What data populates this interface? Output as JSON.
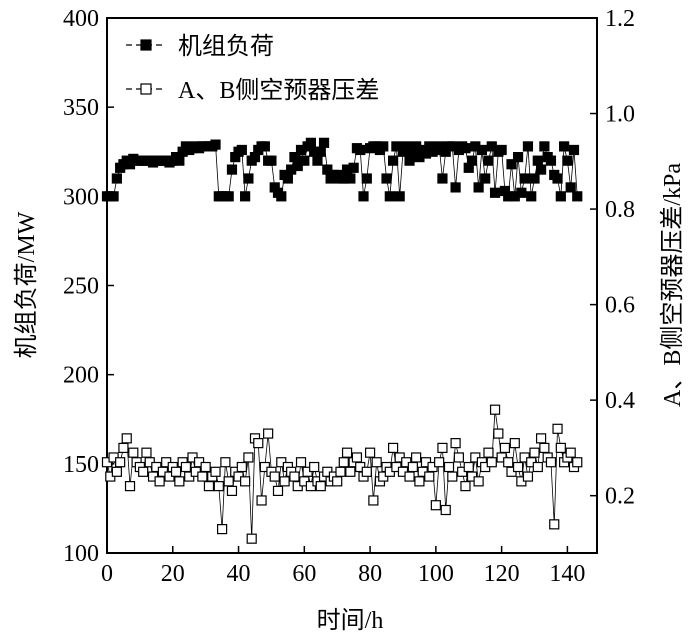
{
  "chart_data": {
    "type": "line",
    "x_label": "时间/h",
    "y_label": "机组负荷/MW",
    "y2_label": "A、B侧空预器压差/kPa",
    "x": [
      0,
      1,
      2,
      3,
      4,
      5,
      6,
      7,
      8,
      9,
      10,
      11,
      12,
      13,
      14,
      15,
      16,
      17,
      18,
      19,
      20,
      21,
      22,
      23,
      24,
      25,
      26,
      27,
      28,
      29,
      30,
      31,
      32,
      33,
      34,
      35,
      36,
      37,
      38,
      39,
      40,
      41,
      42,
      43,
      44,
      45,
      46,
      47,
      48,
      49,
      50,
      51,
      52,
      53,
      54,
      55,
      56,
      57,
      58,
      59,
      60,
      61,
      62,
      63,
      64,
      65,
      66,
      67,
      68,
      69,
      70,
      71,
      72,
      73,
      74,
      75,
      76,
      77,
      78,
      79,
      80,
      81,
      82,
      83,
      84,
      85,
      86,
      87,
      88,
      89,
      90,
      91,
      92,
      93,
      94,
      95,
      96,
      97,
      98,
      99,
      100,
      101,
      102,
      103,
      104,
      105,
      106,
      107,
      108,
      109,
      110,
      111,
      112,
      113,
      114,
      115,
      116,
      117,
      118,
      119,
      120,
      121,
      122,
      123,
      124,
      125,
      126,
      127,
      128,
      129,
      130,
      131,
      132,
      133,
      134,
      135,
      136,
      137,
      138,
      139,
      140,
      141,
      142,
      143
    ],
    "series": [
      {
        "name": "机组负荷",
        "color": "#000000",
        "marker": "filled",
        "axis": "y",
        "values": [
          300,
          300,
          300,
          310,
          316,
          318,
          320,
          318,
          321,
          320,
          320,
          320,
          320,
          320,
          319,
          320,
          320,
          320,
          320,
          319,
          320,
          322,
          320,
          325,
          328,
          326,
          327,
          328,
          327,
          328,
          328,
          328,
          328,
          329,
          300,
          300,
          300,
          300,
          315,
          322,
          325,
          326,
          300,
          310,
          320,
          322,
          326,
          328,
          328,
          320,
          320,
          305,
          302,
          300,
          312,
          310,
          315,
          322,
          317,
          326,
          320,
          328,
          330,
          325,
          320,
          325,
          330,
          315,
          310,
          312,
          312,
          310,
          310,
          315,
          310,
          316,
          327,
          326,
          300,
          310,
          327,
          328,
          328,
          326,
          328,
          310,
          300,
          320,
          328,
          300,
          325,
          328,
          320,
          325,
          328,
          322,
          326,
          324,
          328,
          325,
          326,
          328,
          310,
          325,
          328,
          328,
          305,
          326,
          328,
          327,
          316,
          320,
          328,
          305,
          326,
          310,
          320,
          328,
          302,
          325,
          326,
          303,
          300,
          318,
          300,
          322,
          302,
          310,
          328,
          300,
          310,
          320,
          315,
          328,
          322,
          320,
          312,
          310,
          300,
          328,
          320,
          305,
          326,
          300
        ]
      },
      {
        "name": "A、B侧空预器压差",
        "color": "#000000",
        "marker": "open",
        "axis": "y2",
        "values": [
          0.27,
          0.24,
          0.28,
          0.25,
          0.27,
          0.3,
          0.32,
          0.22,
          0.29,
          0.27,
          0.26,
          0.25,
          0.29,
          0.27,
          0.24,
          0.26,
          0.23,
          0.25,
          0.27,
          0.24,
          0.26,
          0.25,
          0.23,
          0.27,
          0.26,
          0.24,
          0.28,
          0.25,
          0.27,
          0.24,
          0.26,
          0.22,
          0.24,
          0.25,
          0.22,
          0.13,
          0.27,
          0.23,
          0.21,
          0.25,
          0.24,
          0.26,
          0.23,
          0.28,
          0.11,
          0.32,
          0.31,
          0.19,
          0.26,
          0.33,
          0.25,
          0.24,
          0.21,
          0.27,
          0.23,
          0.26,
          0.25,
          0.24,
          0.22,
          0.27,
          0.23,
          0.25,
          0.22,
          0.26,
          0.23,
          0.22,
          0.24,
          0.25,
          0.23,
          0.24,
          0.23,
          0.25,
          0.27,
          0.29,
          0.25,
          0.27,
          0.28,
          0.26,
          0.24,
          0.25,
          0.29,
          0.19,
          0.27,
          0.23,
          0.24,
          0.26,
          0.25,
          0.3,
          0.26,
          0.28,
          0.25,
          0.27,
          0.24,
          0.26,
          0.28,
          0.23,
          0.25,
          0.27,
          0.24,
          0.26,
          0.18,
          0.27,
          0.3,
          0.17,
          0.26,
          0.24,
          0.31,
          0.28,
          0.25,
          0.22,
          0.26,
          0.24,
          0.28,
          0.23,
          0.27,
          0.26,
          0.29,
          0.27,
          0.38,
          0.33,
          0.28,
          0.3,
          0.27,
          0.25,
          0.31,
          0.26,
          0.23,
          0.28,
          0.24,
          0.27,
          0.29,
          0.26,
          0.32,
          0.3,
          0.28,
          0.27,
          0.14,
          0.34,
          0.3,
          0.27,
          0.28,
          0.29,
          0.26,
          0.27
        ]
      }
    ],
    "xlim": [
      0,
      149
    ],
    "xticks": [
      0,
      20,
      40,
      60,
      80,
      100,
      120,
      140
    ],
    "ylim": [
      100,
      400
    ],
    "yticks": [
      100,
      150,
      200,
      250,
      300,
      350,
      400
    ],
    "y2lim": [
      0.08,
      1.2
    ],
    "y2ticks": [
      0.2,
      0.4,
      0.6,
      0.8,
      {
        "value": 1.0,
        "label": "1.0"
      },
      1.2
    ],
    "legend": "upper left"
  }
}
